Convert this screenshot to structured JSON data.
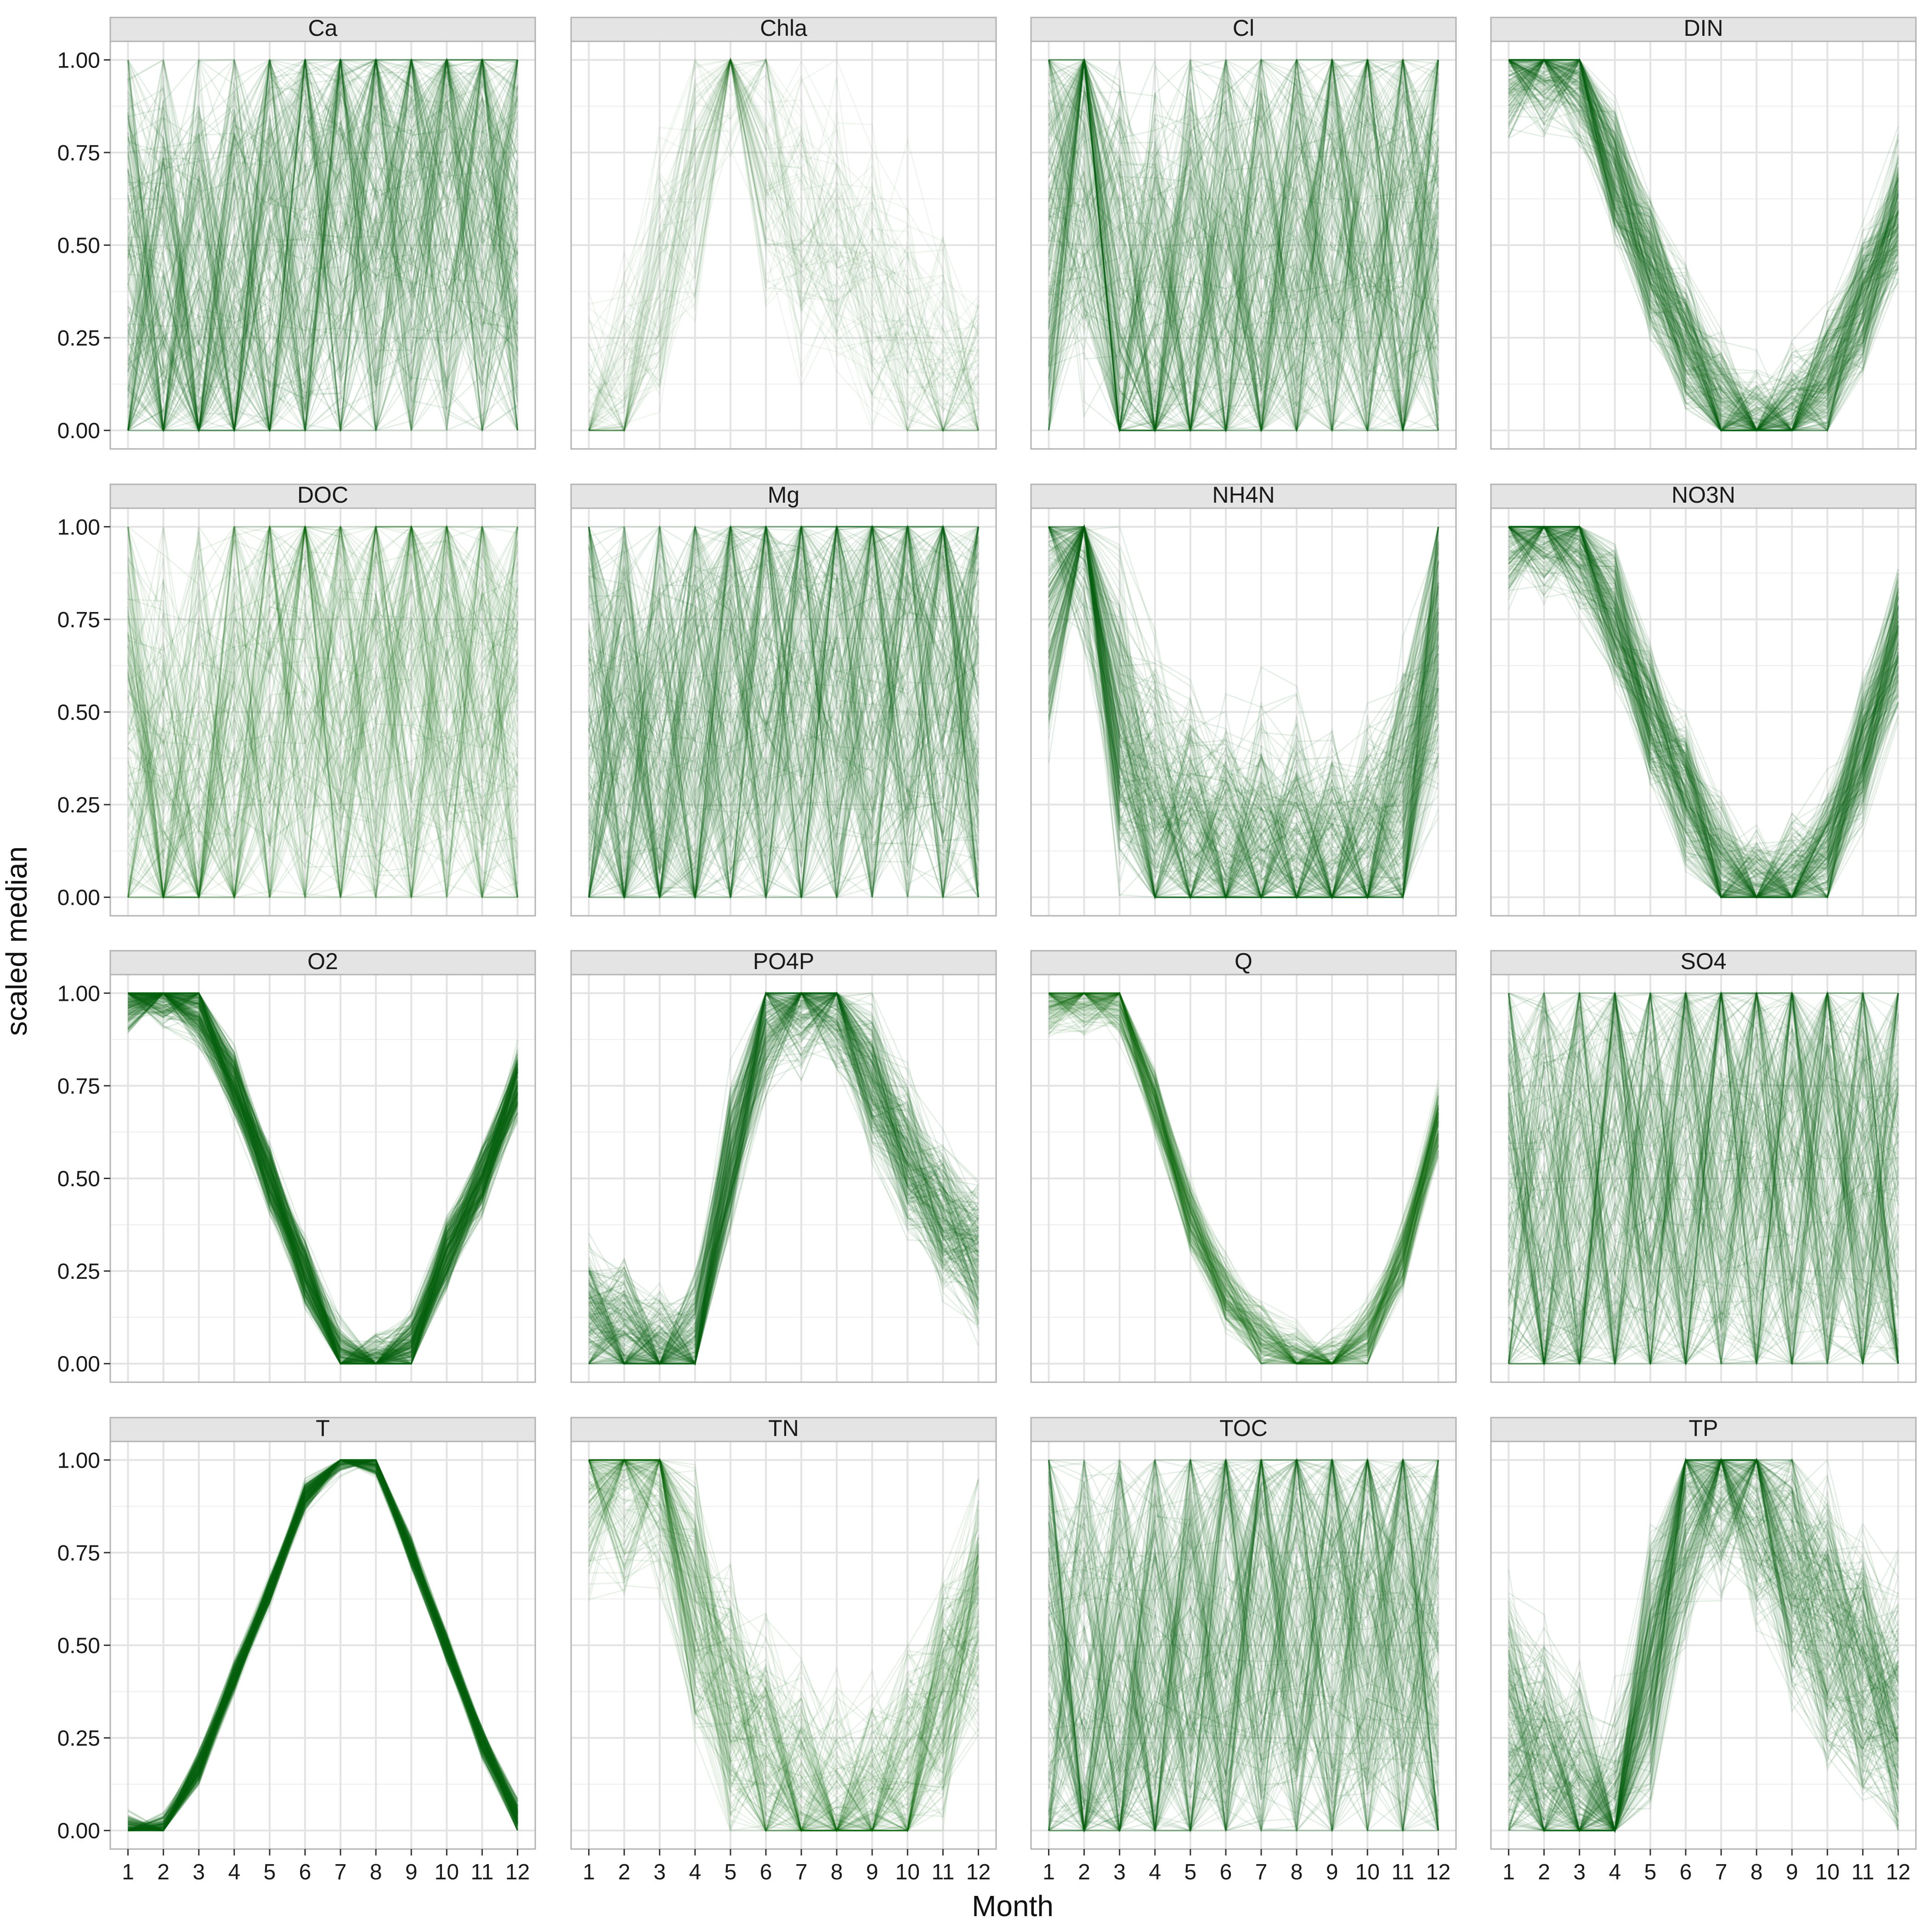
{
  "chart_data": {
    "type": "line",
    "facet_layout": "4x4 grid, shared axes",
    "xlabel": "Month",
    "ylabel": "scaled median",
    "x_ticks": [
      1,
      2,
      3,
      4,
      5,
      6,
      7,
      8,
      9,
      10,
      11,
      12
    ],
    "xlim": [
      0.5,
      12.5
    ],
    "y_ticks": [
      "0.00",
      "0.25",
      "0.50",
      "0.75",
      "1.00"
    ],
    "ylim": [
      -0.05,
      1.05
    ],
    "grid": true,
    "line_color": "#0a6610",
    "strip_background": "#e4e4e4",
    "facets": [
      {
        "name": "Ca",
        "median_profile": [
          0.4,
          0.35,
          0.32,
          0.4,
          0.48,
          0.52,
          0.55,
          0.58,
          0.6,
          0.62,
          0.6,
          0.55
        ],
        "density": "high",
        "spread": "very high"
      },
      {
        "name": "Chla",
        "median_profile": [
          0.0,
          0.05,
          0.3,
          0.55,
          0.85,
          0.6,
          0.45,
          0.4,
          0.3,
          0.2,
          0.1,
          0.03
        ],
        "density": "low",
        "spread": "high"
      },
      {
        "name": "Cl",
        "median_profile": [
          0.55,
          0.8,
          0.3,
          0.3,
          0.35,
          0.4,
          0.45,
          0.5,
          0.55,
          0.55,
          0.5,
          0.5
        ],
        "density": "high",
        "spread": "very high"
      },
      {
        "name": "DIN",
        "median_profile": [
          0.97,
          0.98,
          0.95,
          0.7,
          0.45,
          0.25,
          0.08,
          0.02,
          0.05,
          0.15,
          0.35,
          0.6
        ],
        "density": "high",
        "spread": "medium"
      },
      {
        "name": "DOC",
        "median_profile": [
          0.4,
          0.3,
          0.3,
          0.4,
          0.5,
          0.55,
          0.55,
          0.55,
          0.55,
          0.55,
          0.5,
          0.45
        ],
        "density": "medium",
        "spread": "very high"
      },
      {
        "name": "Mg",
        "median_profile": [
          0.45,
          0.4,
          0.4,
          0.45,
          0.5,
          0.55,
          0.55,
          0.55,
          0.6,
          0.6,
          0.55,
          0.5
        ],
        "density": "high",
        "spread": "very high"
      },
      {
        "name": "NH4N",
        "median_profile": [
          0.7,
          0.85,
          0.4,
          0.2,
          0.15,
          0.12,
          0.1,
          0.08,
          0.08,
          0.1,
          0.2,
          0.6
        ],
        "density": "high",
        "spread": "high"
      },
      {
        "name": "NO3N",
        "median_profile": [
          0.98,
          0.98,
          0.95,
          0.75,
          0.5,
          0.3,
          0.1,
          0.03,
          0.05,
          0.15,
          0.4,
          0.7
        ],
        "density": "high",
        "spread": "medium"
      },
      {
        "name": "O2",
        "median_profile": [
          0.97,
          0.99,
          0.95,
          0.75,
          0.5,
          0.25,
          0.02,
          0.0,
          0.05,
          0.3,
          0.5,
          0.75
        ],
        "density": "very high",
        "spread": "low"
      },
      {
        "name": "PO4P",
        "median_profile": [
          0.15,
          0.1,
          0.05,
          0.08,
          0.55,
          0.9,
          0.95,
          0.95,
          0.75,
          0.55,
          0.4,
          0.3
        ],
        "density": "high",
        "spread": "medium"
      },
      {
        "name": "Q",
        "median_profile": [
          0.97,
          0.98,
          0.97,
          0.7,
          0.4,
          0.2,
          0.08,
          0.02,
          0.01,
          0.08,
          0.3,
          0.65
        ],
        "density": "medium",
        "spread": "low"
      },
      {
        "name": "SO4",
        "median_profile": [
          0.5,
          0.45,
          0.45,
          0.5,
          0.5,
          0.52,
          0.55,
          0.55,
          0.55,
          0.55,
          0.5,
          0.5
        ],
        "density": "high",
        "spread": "very high"
      },
      {
        "name": "T",
        "median_profile": [
          0.02,
          0.02,
          0.18,
          0.42,
          0.65,
          0.9,
          1.0,
          0.99,
          0.75,
          0.5,
          0.25,
          0.05
        ],
        "density": "very high",
        "spread": "very low"
      },
      {
        "name": "TN",
        "median_profile": [
          0.95,
          0.95,
          0.95,
          0.6,
          0.35,
          0.2,
          0.1,
          0.05,
          0.08,
          0.15,
          0.35,
          0.6
        ],
        "density": "medium",
        "spread": "high"
      },
      {
        "name": "TOC",
        "median_profile": [
          0.4,
          0.35,
          0.35,
          0.4,
          0.45,
          0.5,
          0.55,
          0.55,
          0.55,
          0.55,
          0.5,
          0.45
        ],
        "density": "high",
        "spread": "very high"
      },
      {
        "name": "TP",
        "median_profile": [
          0.3,
          0.2,
          0.1,
          0.05,
          0.45,
          0.85,
          0.95,
          0.9,
          0.7,
          0.55,
          0.45,
          0.35
        ],
        "density": "high",
        "spread": "high"
      }
    ]
  }
}
